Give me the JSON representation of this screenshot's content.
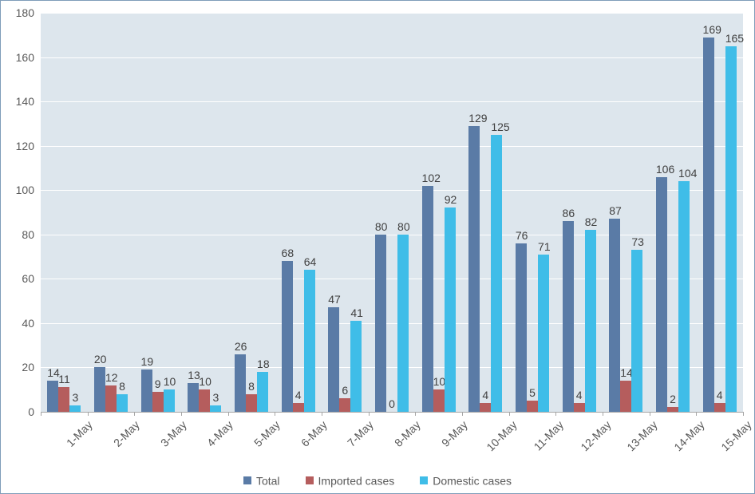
{
  "chart": {
    "type": "bar",
    "background_color": "#ffffff",
    "plot_background_color": "#dde6ed",
    "border_color": "#7f9db9",
    "gridline_color": "#ffffff",
    "axis_line_color": "#a6a6a6",
    "tick_label_color": "#595959",
    "data_label_color": "#404040",
    "font_family": "Arial, sans-serif",
    "tick_fontsize": 14,
    "data_label_fontsize": 14,
    "legend_fontsize": 14,
    "ylim": [
      0,
      180
    ],
    "ytick_step": 20,
    "yticks": [
      0,
      20,
      40,
      60,
      80,
      100,
      120,
      140,
      160,
      180
    ],
    "categories": [
      "1-May",
      "2-May",
      "3-May",
      "4-May",
      "5-May",
      "6-May",
      "7-May",
      "8-May",
      "9-May",
      "10-May",
      "11-May",
      "12-May",
      "13-May",
      "14-May",
      "15-May"
    ],
    "series": [
      {
        "name": "Total",
        "color": "#5a7ba6",
        "values": [
          14,
          20,
          19,
          13,
          26,
          68,
          47,
          80,
          102,
          129,
          76,
          86,
          87,
          106,
          169
        ]
      },
      {
        "name": "Imported cases",
        "color": "#b55d5d",
        "values": [
          11,
          12,
          9,
          10,
          8,
          4,
          6,
          0,
          10,
          4,
          5,
          4,
          14,
          2,
          4
        ]
      },
      {
        "name": "Domestic cases",
        "color": "#3fbde8",
        "values": [
          3,
          8,
          10,
          3,
          18,
          64,
          41,
          80,
          92,
          125,
          71,
          82,
          73,
          104,
          165
        ]
      }
    ],
    "bar_gap_ratio": 0.28,
    "x_tick_rotation": -45
  }
}
